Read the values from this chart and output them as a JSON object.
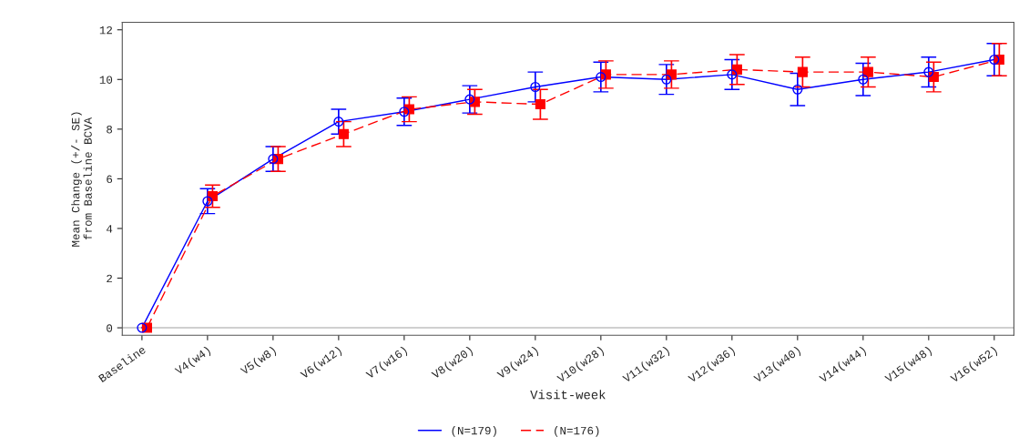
{
  "chart_data": {
    "type": "line",
    "xlabel": "Visit-week",
    "ylabel": "Mean Change (+/- SE)\nfrom Baseline BCVA",
    "categories": [
      "Baseline",
      "V4(w4)",
      "V5(w8)",
      "V6(w12)",
      "V7(w16)",
      "V8(w20)",
      "V9(w24)",
      "V10(w28)",
      "V11(w32)",
      "V12(w36)",
      "V13(w40)",
      "V14(w44)",
      "V15(w48)",
      "V16(w52)"
    ],
    "series": [
      {
        "name": "(N=179)",
        "color": "#0000ff",
        "marker": "circle",
        "line_style": "solid",
        "values": [
          0,
          5.1,
          6.8,
          8.3,
          8.7,
          9.2,
          9.7,
          10.1,
          10.0,
          10.2,
          9.6,
          10.0,
          10.3,
          10.8
        ],
        "errors": [
          null,
          0.5,
          0.5,
          0.5,
          0.55,
          0.55,
          0.6,
          0.6,
          0.6,
          0.6,
          0.65,
          0.65,
          0.6,
          0.65
        ]
      },
      {
        "name": "(N=176)",
        "color": "#ff0000",
        "marker": "square",
        "line_style": "dashed",
        "values": [
          0,
          5.3,
          6.8,
          7.8,
          8.8,
          9.1,
          9.0,
          10.2,
          10.2,
          10.4,
          10.3,
          10.3,
          10.1,
          10.8
        ],
        "errors": [
          null,
          0.45,
          0.5,
          0.5,
          0.5,
          0.5,
          0.6,
          0.55,
          0.55,
          0.6,
          0.6,
          0.6,
          0.6,
          0.65
        ]
      }
    ],
    "ylim": [
      -0.3,
      12.3
    ],
    "yticks": [
      0,
      2,
      4,
      6,
      8,
      10,
      12
    ],
    "grid": false,
    "legend": "bottom",
    "ref_lines": [
      {
        "axis": "y",
        "value": 0,
        "color": "#c0c0c0"
      }
    ]
  }
}
